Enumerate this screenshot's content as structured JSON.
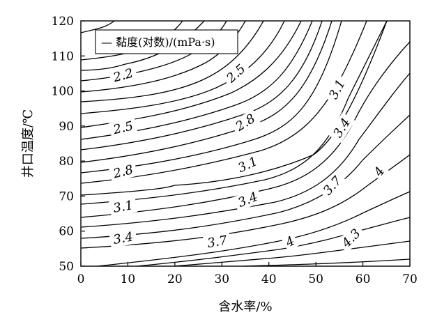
{
  "chart_data": {
    "type": "contour",
    "xlabel": "含水率/%",
    "ylabel": "井口温度/℃",
    "xlim": [
      0,
      70
    ],
    "ylim": [
      50,
      120
    ],
    "x_ticks": [
      "0",
      "10",
      "20",
      "30",
      "40",
      "50",
      "60",
      "70"
    ],
    "y_ticks": [
      "50",
      "60",
      "70",
      "80",
      "90",
      "100",
      "110",
      "120"
    ],
    "legend": "— 黏度(对数)/(mPa·s)",
    "contour_labels": [
      {
        "text": "2.2",
        "x": 9,
        "y": 104.5,
        "angle": -15
      },
      {
        "text": "2.5",
        "x": 9,
        "y": 89.5,
        "angle": -13
      },
      {
        "text": "2.8",
        "x": 9,
        "y": 77,
        "angle": -14
      },
      {
        "text": "3.1",
        "x": 9,
        "y": 67,
        "angle": -10
      },
      {
        "text": "3.4",
        "x": 9,
        "y": 58,
        "angle": -10
      },
      {
        "text": "2.5",
        "x": 33,
        "y": 105,
        "angle": -42
      },
      {
        "text": "2.8",
        "x": 35,
        "y": 91,
        "angle": -32
      },
      {
        "text": "3.1",
        "x": 35.5,
        "y": 79,
        "angle": -25
      },
      {
        "text": "3.4",
        "x": 35.5,
        "y": 69,
        "angle": -22
      },
      {
        "text": "3.7",
        "x": 29,
        "y": 57,
        "angle": -10
      },
      {
        "text": "3.1",
        "x": 54.5,
        "y": 100.5,
        "angle": -62
      },
      {
        "text": "3.4",
        "x": 55.5,
        "y": 89.5,
        "angle": -58
      },
      {
        "text": "3.7",
        "x": 53.5,
        "y": 73,
        "angle": -48
      },
      {
        "text": "4",
        "x": 44.5,
        "y": 57,
        "angle": -28
      },
      {
        "text": "4.3",
        "x": 57.5,
        "y": 58,
        "angle": -45
      },
      {
        "text": "4",
        "x": 63.5,
        "y": 77,
        "angle": -55
      }
    ]
  }
}
